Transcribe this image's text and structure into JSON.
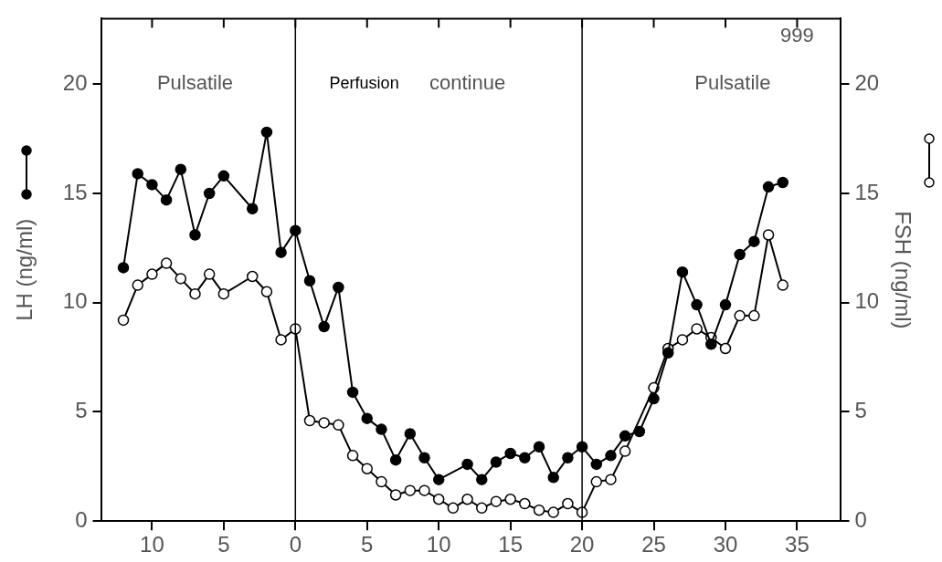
{
  "chart_data": {
    "type": "line",
    "xlabel": null,
    "ylabel": "LH (ng/ml)",
    "y2label": "FSH (ng/ml)",
    "annotations": [
      "Pulsatile",
      "Perfusion",
      "continue",
      "Pulsatile",
      "999"
    ],
    "xlim": [
      -13.5,
      38
    ],
    "xticks": [
      {
        "value": -10,
        "label": "10"
      },
      {
        "value": -5,
        "label": "5"
      },
      0,
      5,
      10,
      15,
      20,
      25,
      30,
      35
    ],
    "ylim": [
      0,
      23
    ],
    "yticks": [
      0,
      5,
      10,
      15,
      20
    ],
    "y2lim": [
      0,
      23
    ],
    "y2ticks": [
      0,
      5,
      10,
      15,
      20
    ],
    "ref_lines": [
      {
        "axis": "x",
        "value": 0,
        "color": "#000000"
      },
      {
        "axis": "x",
        "value": 20,
        "color": "#000000"
      }
    ],
    "grid": false,
    "legend": false,
    "marker": "circle",
    "line_style": "solid",
    "series": [
      {
        "color": "#000000",
        "x": [
          -12,
          -11,
          -10,
          -9,
          -8,
          -7,
          -6,
          -5,
          -3,
          -2,
          -1,
          0,
          1,
          2,
          3,
          4,
          5,
          6,
          7,
          8,
          9,
          10,
          12,
          13,
          14,
          15,
          16,
          17,
          18,
          19,
          20,
          21,
          22,
          23,
          24,
          25,
          26,
          27,
          28,
          29,
          30,
          31,
          32,
          33,
          34
        ],
        "values": [
          11.6,
          15.9,
          15.4,
          14.7,
          16.1,
          13.1,
          15.0,
          15.8,
          14.3,
          17.8,
          12.3,
          13.3,
          11.0,
          8.9,
          10.7,
          5.9,
          4.7,
          4.2,
          2.8,
          4.0,
          2.9,
          1.9,
          2.6,
          1.9,
          2.7,
          3.1,
          2.9,
          3.4,
          2.0,
          2.9,
          3.4,
          2.6,
          3.0,
          3.9,
          4.1,
          5.6,
          7.7,
          11.4,
          9.9,
          8.1,
          9.9,
          12.2,
          12.8,
          15.3,
          15.5
        ]
      },
      {
        "color": "#000000",
        "axis": "y2",
        "x": [
          -12,
          -11,
          -10,
          -9,
          -8,
          -7,
          -6,
          -5,
          -3,
          -2,
          -1,
          0,
          1,
          2,
          3,
          4,
          5,
          6,
          7,
          8,
          9,
          10,
          11,
          12,
          13,
          14,
          15,
          16,
          17,
          18,
          19,
          20,
          21,
          22,
          23,
          25,
          26,
          27,
          28,
          29,
          30,
          31,
          32,
          33,
          34
        ],
        "values": [
          9.2,
          10.8,
          11.3,
          11.8,
          11.1,
          10.4,
          11.3,
          10.4,
          11.2,
          10.5,
          8.3,
          8.8,
          4.6,
          4.5,
          4.4,
          3.0,
          2.4,
          1.8,
          1.2,
          1.4,
          1.4,
          1.0,
          0.6,
          1.0,
          0.6,
          0.9,
          1.0,
          0.8,
          0.5,
          0.4,
          0.8,
          0.4,
          1.8,
          1.9,
          3.2,
          6.1,
          7.9,
          8.3,
          8.8,
          8.4,
          7.9,
          9.4,
          9.4,
          13.1,
          10.8
        ]
      }
    ]
  }
}
